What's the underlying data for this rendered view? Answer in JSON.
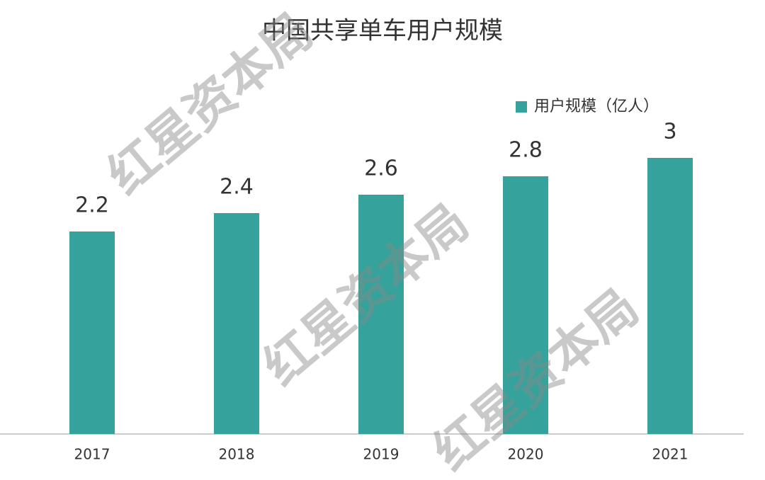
{
  "chart_data": {
    "type": "bar",
    "title": "中国共享单车用户规模",
    "categories": [
      "2017",
      "2018",
      "2019",
      "2020",
      "2021"
    ],
    "series": [
      {
        "name": "用户规模（亿人）",
        "color": "#35a39b",
        "values": [
          2.2,
          2.4,
          2.6,
          2.8,
          3
        ]
      }
    ],
    "ylim": [
      0,
      3.5
    ],
    "legend": "top-right",
    "watermark": "红星资本局"
  }
}
